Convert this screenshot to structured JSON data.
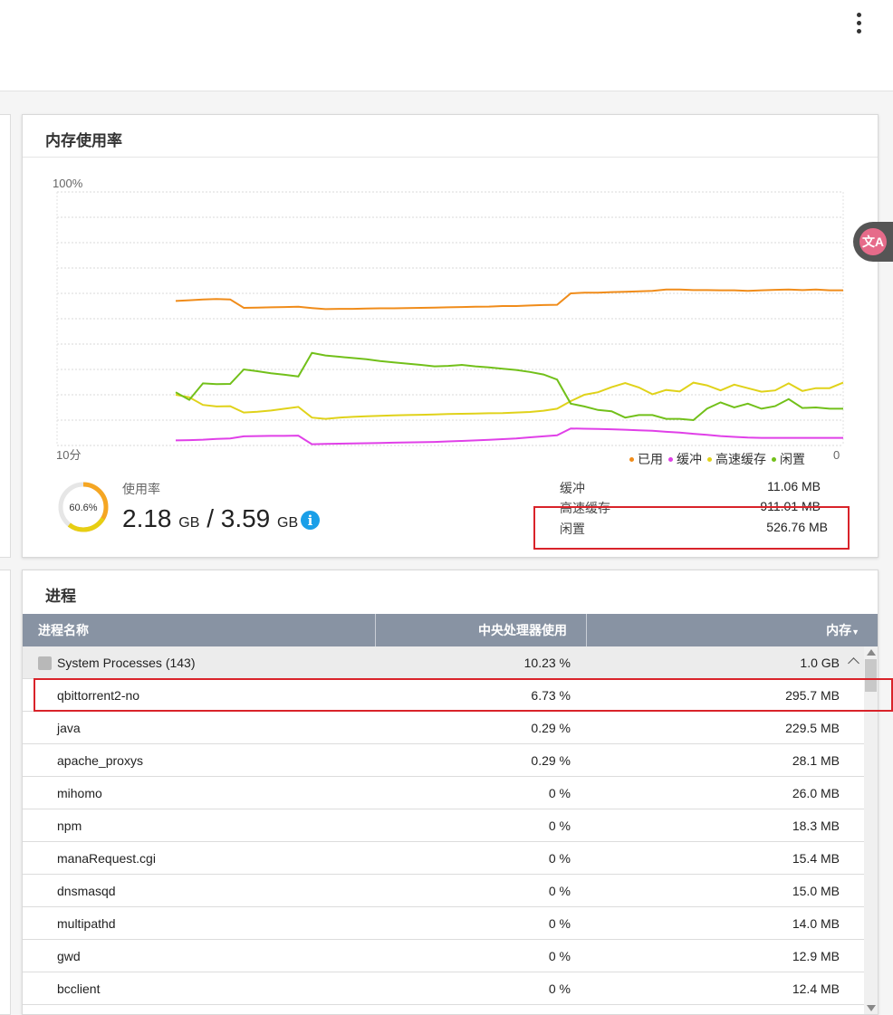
{
  "memory": {
    "title": "内存使用率",
    "chart_data": {
      "type": "line",
      "y_axis": {
        "range": [
          0,
          100
        ],
        "top_label": "100%",
        "bottom_label": "0"
      },
      "x_axis": {
        "left_label": "10分"
      },
      "legend": [
        {
          "name": "已用",
          "color": "#f08c1a"
        },
        {
          "name": "缓冲",
          "color": "#e040e8"
        },
        {
          "name": "高速缓存",
          "color": "#e0d21a"
        },
        {
          "name": "闲置",
          "color": "#72c01a"
        }
      ],
      "series": [
        {
          "name": "已用",
          "color": "#f08c1a",
          "values": [
            57,
            57.3,
            57.6,
            57.8,
            57.6,
            54.3,
            54.4,
            54.5,
            54.6,
            54.7,
            54.2,
            53.8,
            53.9,
            53.9,
            54.0,
            54.1,
            54.1,
            54.2,
            54.3,
            54.4,
            54.5,
            54.6,
            54.7,
            54.8,
            55.0,
            55.0,
            55.2,
            55.4,
            55.5,
            60.0,
            60.3,
            60.3,
            60.5,
            60.6,
            60.8,
            61.0,
            61.5,
            61.5,
            61.3,
            61.3,
            61.2,
            61.2,
            61.0,
            61.2,
            61.4,
            61.5,
            61.3,
            61.5,
            61.2,
            61.2
          ]
        },
        {
          "name": "缓冲",
          "color": "#e040e8",
          "values": [
            2,
            2.1,
            2.3,
            2.6,
            2.8,
            3.6,
            3.7,
            3.8,
            3.8,
            3.9,
            0.5,
            0.6,
            0.7,
            0.8,
            0.9,
            1.0,
            1.1,
            1.2,
            1.3,
            1.4,
            1.6,
            1.8,
            2.0,
            2.2,
            2.5,
            2.8,
            3.2,
            3.6,
            4.0,
            6.7,
            6.6,
            6.5,
            6.4,
            6.2,
            6.0,
            5.8,
            5.4,
            5.1,
            4.6,
            4.2,
            3.7,
            3.4,
            3.1,
            3.0,
            3.0,
            3.0,
            3.0,
            3.0,
            3.0,
            3.0
          ]
        },
        {
          "name": "高速缓存",
          "color": "#e0d21a",
          "values": [
            20,
            19,
            16,
            15.4,
            15.5,
            13.0,
            13.3,
            13.8,
            14.5,
            15.2,
            11.0,
            10.5,
            11.0,
            11.3,
            11.5,
            11.7,
            11.9,
            12.0,
            12.1,
            12.2,
            12.4,
            12.5,
            12.6,
            12.7,
            12.8,
            13.0,
            13.2,
            13.7,
            14.5,
            17.5,
            20,
            21,
            23,
            24.6,
            22.9,
            20.2,
            21.9,
            21.3,
            24.8,
            23.7,
            21.7,
            24,
            22.6,
            21.2,
            21.7,
            24.5,
            21.5,
            22.6,
            22.6,
            24.8
          ]
        },
        {
          "name": "闲置",
          "color": "#72c01a",
          "values": [
            21,
            18,
            24.5,
            24.2,
            24.3,
            30.0,
            29.3,
            28.5,
            27.9,
            27.2,
            36.5,
            35.5,
            35.0,
            34.5,
            34.0,
            33.3,
            32.8,
            32.3,
            31.8,
            31.2,
            31.4,
            31.8,
            31.2,
            30.8,
            30.3,
            29.8,
            29.0,
            28.0,
            26.0,
            16.5,
            15.4,
            14.0,
            13.5,
            11.0,
            12.0,
            12.0,
            10.5,
            10.5,
            10.0,
            14.5,
            17.0,
            15.0,
            16.5,
            14.5,
            15.5,
            18.3,
            14.8,
            15.0,
            14.5,
            14.5
          ]
        }
      ]
    },
    "usage": {
      "label": "使用率",
      "percent_text": "60.6%",
      "percent": 60.6,
      "used": "2.18",
      "total": "3.59",
      "unit": "GB",
      "separator": "/"
    },
    "stats": [
      {
        "label": "缓冲",
        "value": "11.06 MB"
      },
      {
        "label": "高速缓存",
        "value": "911.01 MB"
      },
      {
        "label": "闲置",
        "value": "526.76 MB"
      }
    ]
  },
  "processes": {
    "title": "进程",
    "columns": {
      "name": "进程名称",
      "cpu": "中央处理器使用率",
      "memory": "内存"
    },
    "group": {
      "name": "System Processes (143)",
      "cpu": "10.23 %",
      "memory": "1.0 GB"
    },
    "rows": [
      {
        "name": "qbittorrent2-no",
        "cpu": "6.73 %",
        "memory": "295.7 MB"
      },
      {
        "name": "java",
        "cpu": "0.29 %",
        "memory": "229.5 MB"
      },
      {
        "name": "apache_proxys",
        "cpu": "0.29 %",
        "memory": "28.1 MB"
      },
      {
        "name": "mihomo",
        "cpu": "0 %",
        "memory": "26.0 MB"
      },
      {
        "name": "npm",
        "cpu": "0 %",
        "memory": "18.3 MB"
      },
      {
        "name": "manaRequest.cgi",
        "cpu": "0 %",
        "memory": "15.4 MB"
      },
      {
        "name": "dnsmasqd",
        "cpu": "0 %",
        "memory": "15.0 MB"
      },
      {
        "name": "multipathd",
        "cpu": "0 %",
        "memory": "14.0 MB"
      },
      {
        "name": "gwd",
        "cpu": "0 %",
        "memory": "12.9 MB"
      },
      {
        "name": "bcclient",
        "cpu": "0 %",
        "memory": "12.4 MB"
      }
    ]
  },
  "translate_button": {
    "icon_text": "文A"
  }
}
